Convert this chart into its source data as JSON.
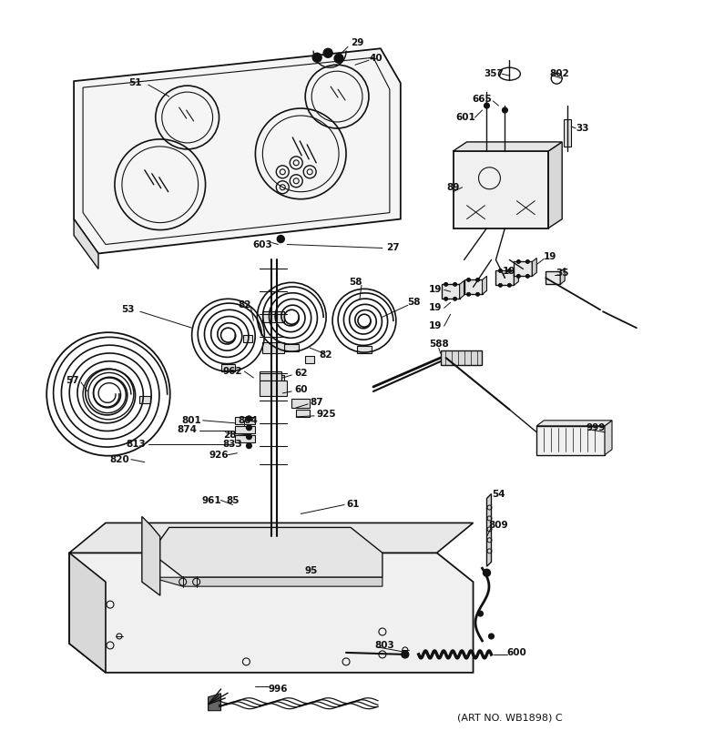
{
  "bg_color": "#ffffff",
  "subtitle": "(ART NO. WB1898) C",
  "lw": 1.0,
  "lc": "#111111"
}
